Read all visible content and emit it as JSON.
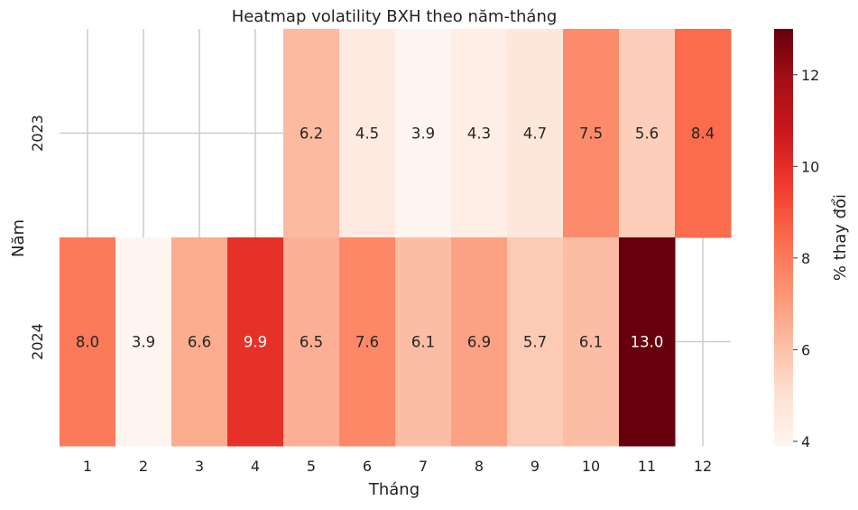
{
  "chart_data": {
    "type": "heatmap",
    "title": "Heatmap volatility BXH theo năm-tháng",
    "xlabel": "Tháng",
    "ylabel": "Năm",
    "x_categories": [
      "1",
      "2",
      "3",
      "4",
      "5",
      "6",
      "7",
      "8",
      "9",
      "10",
      "11",
      "12"
    ],
    "y_categories": [
      "2023",
      "2024"
    ],
    "values": [
      [
        null,
        null,
        null,
        null,
        6.2,
        4.5,
        3.9,
        4.3,
        4.7,
        7.5,
        5.6,
        8.4
      ],
      [
        8.0,
        3.9,
        6.6,
        9.9,
        6.5,
        7.6,
        6.1,
        6.9,
        5.7,
        6.1,
        13.0,
        null
      ]
    ],
    "colorbar": {
      "label": "% thay đổi",
      "min": 3.9,
      "max": 13.0,
      "ticks": [
        "4",
        "6",
        "8",
        "10",
        "12"
      ],
      "colormap": "Reds"
    },
    "grid": true
  }
}
